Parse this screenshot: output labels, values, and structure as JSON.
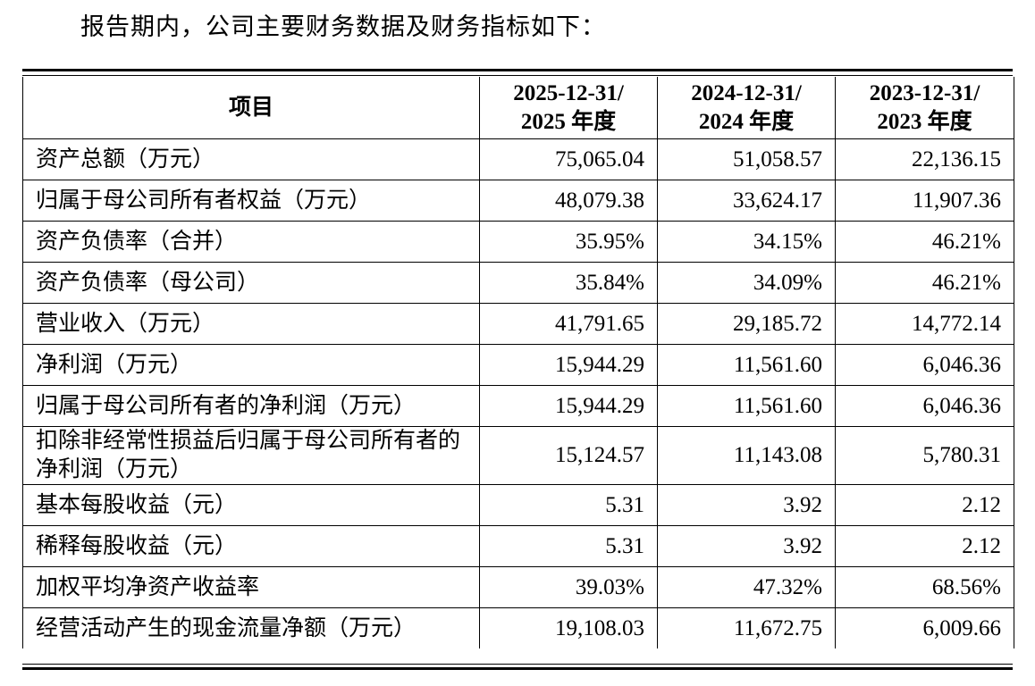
{
  "header": {
    "intro": "报告期内，公司主要财务数据及财务指标如下："
  },
  "table": {
    "columns": [
      "项目",
      "2025-12-31/\n2025 年度",
      "2024-12-31/\n2024 年度",
      "2023-12-31/\n2023 年度"
    ],
    "rows": [
      [
        "资产总额（万元）",
        "75,065.04",
        "51,058.57",
        "22,136.15"
      ],
      [
        "归属于母公司所有者权益（万元）",
        "48,079.38",
        "33,624.17",
        "11,907.36"
      ],
      [
        "资产负债率（合并）",
        "35.95%",
        "34.15%",
        "46.21%"
      ],
      [
        "资产负债率（母公司）",
        "35.84%",
        "34.09%",
        "46.21%"
      ],
      [
        "营业收入（万元）",
        "41,791.65",
        "29,185.72",
        "14,772.14"
      ],
      [
        "净利润（万元）",
        "15,944.29",
        "11,561.60",
        "6,046.36"
      ],
      [
        "归属于母公司所有者的净利润（万元）",
        "15,944.29",
        "11,561.60",
        "6,046.36"
      ],
      [
        "扣除非经常性损益后归属于母公司所有者的净利润（万元）",
        "15,124.57",
        "11,143.08",
        "5,780.31"
      ],
      [
        "基本每股收益（元）",
        "5.31",
        "3.92",
        "2.12"
      ],
      [
        "稀释每股收益（元）",
        "5.31",
        "3.92",
        "2.12"
      ],
      [
        "加权平均净资产收益率",
        "39.03%",
        "47.32%",
        "68.56%"
      ],
      [
        "经营活动产生的现金流量净额（万元）",
        "19,108.03",
        "11,672.75",
        "6,009.66"
      ]
    ]
  }
}
